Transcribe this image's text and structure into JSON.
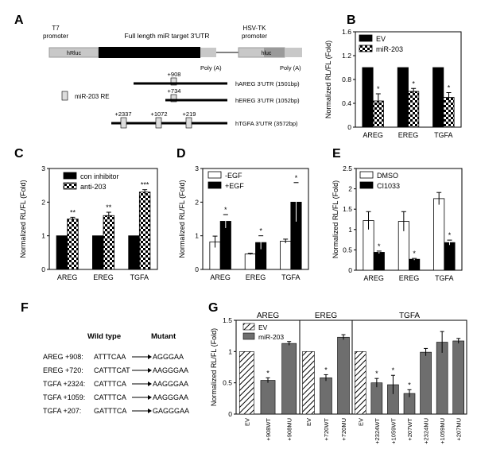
{
  "panel_labels": {
    "a": "A",
    "b": "B",
    "c": "C",
    "d": "D",
    "e": "E",
    "f": "F",
    "g": "G"
  },
  "panel_a": {
    "t7_label": "T7\npromoter",
    "hsv_label": "HSV-TK\npromoter",
    "utr_label": "Full length miR target 3'UTR",
    "hrluc": "hRluc",
    "hluc": "hluc",
    "polya1": "Poly (A)",
    "polya2": "Poly (A)",
    "re_legend": "miR-203 RE",
    "constructs": [
      {
        "name": "hAREG 3'UTR (1501bp)",
        "sites": [
          "+908"
        ]
      },
      {
        "name": "hEREG 3'UTR (1052bp)",
        "sites": [
          "+734"
        ]
      },
      {
        "name": "hTGFA 3'UTR (3572bp)",
        "sites": [
          "+2337",
          "+1072",
          "+219"
        ]
      }
    ]
  },
  "panel_f": {
    "header_wild": "Wild  type",
    "header_mut": "Mutant",
    "rows": [
      {
        "site": "AREG +908:",
        "wild": "ATTTCAA",
        "mut": "AGGGAA"
      },
      {
        "site": "EREG +720:",
        "wild": "CATTTCAT",
        "mut": "AAGGGAA"
      },
      {
        "site": "TGFA +2324:",
        "wild": "CATTTCA",
        "mut": "AAGGGAA"
      },
      {
        "site": "TGFA +1059:",
        "wild": "CATTTCA",
        "mut": "AAGGGAA"
      },
      {
        "site": "TGFA +207:",
        "wild": "GATTTCA",
        "mut": "GAGGGAA"
      }
    ]
  },
  "chart_data": [
    {
      "id": "B",
      "type": "bar",
      "ylabel": "Normalized RL/FL (Fold)",
      "ylim": [
        0,
        1.6
      ],
      "yticks": [
        0,
        0.4,
        0.8,
        1.2,
        1.6
      ],
      "categories": [
        "AREG",
        "EREG",
        "TGFA"
      ],
      "series": [
        {
          "name": "EV",
          "values": [
            1,
            1,
            1
          ],
          "err": [
            0,
            0,
            0
          ]
        },
        {
          "name": "miR-203",
          "values": [
            0.44,
            0.6,
            0.5
          ],
          "err": [
            0.12,
            0.05,
            0.08
          ]
        }
      ],
      "annotations": [
        "*",
        "*",
        "*"
      ]
    },
    {
      "id": "C",
      "type": "bar",
      "ylabel": "Normalized RL/FL (Fold)",
      "ylim": [
        0,
        3
      ],
      "yticks": [
        0,
        1,
        2,
        3
      ],
      "categories": [
        "AREG",
        "EREG",
        "TGFA"
      ],
      "series": [
        {
          "name": "con inhibitor",
          "values": [
            1,
            1,
            1
          ],
          "err": [
            0,
            0,
            0
          ]
        },
        {
          "name": "anti-203",
          "values": [
            1.5,
            1.6,
            2.3
          ],
          "err": [
            0.05,
            0.1,
            0.07
          ]
        }
      ],
      "annotations": [
        "**",
        "**",
        "***"
      ]
    },
    {
      "id": "D",
      "type": "bar",
      "ylabel": "Normalized RL/FL (Fold)",
      "ylim": [
        0,
        3
      ],
      "yticks": [
        0,
        1,
        2,
        3
      ],
      "categories": [
        "AREG",
        "EREG",
        "TGFA"
      ],
      "series": [
        {
          "name": "-EGF",
          "values": [
            0.82,
            0.46,
            0.84
          ],
          "err": [
            0.17,
            0.02,
            0.06
          ]
        },
        {
          "name": "+EGF",
          "values": [
            1.43,
            0.8,
            2.0
          ],
          "err": [
            0.2,
            0.2,
            0.58
          ]
        }
      ],
      "annotations": [
        "*",
        "*",
        "*"
      ]
    },
    {
      "id": "E",
      "type": "bar",
      "ylabel": "Normalized RL/FL (Fold)",
      "ylim": [
        0,
        2.5
      ],
      "yticks": [
        0,
        0.5,
        1,
        1.5,
        2,
        2.5
      ],
      "categories": [
        "AREG",
        "EREG",
        "TGFA"
      ],
      "series": [
        {
          "name": "DMSO",
          "values": [
            1.22,
            1.2,
            1.76
          ],
          "err": [
            0.22,
            0.24,
            0.15
          ]
        },
        {
          "name": "CI1033",
          "values": [
            0.44,
            0.27,
            0.68
          ],
          "err": [
            0.03,
            0.02,
            0.06
          ]
        }
      ],
      "annotations": [
        "*",
        "*",
        "*"
      ]
    },
    {
      "id": "G",
      "type": "bar",
      "ylabel": "Normalized RL/FL (Fold)",
      "ylim": [
        0,
        1.5
      ],
      "yticks": [
        0,
        0.5,
        1,
        1.5
      ],
      "legend": [
        "EV",
        "miR-203"
      ],
      "groups": [
        {
          "title": "AREG",
          "categories": [
            "EV",
            "+908WT",
            "+908MU"
          ],
          "values": [
            1,
            0.54,
            1.13
          ],
          "err": [
            0,
            0.04,
            0.03
          ],
          "stars": [
            "",
            "*",
            ""
          ]
        },
        {
          "title": "EREG",
          "categories": [
            "EV",
            "+720WT",
            "+720MU"
          ],
          "values": [
            1,
            0.58,
            1.23
          ],
          "err": [
            0,
            0.05,
            0.04
          ],
          "stars": [
            "",
            "*",
            ""
          ]
        },
        {
          "title": "TGFA",
          "categories": [
            "EV",
            "+2324WT",
            "+1059WT",
            "+207WT",
            "+2324MU",
            "+1059MU",
            "+207MU"
          ],
          "values": [
            1,
            0.5,
            0.47,
            0.33,
            0.99,
            1.15,
            1.17
          ],
          "err": [
            0,
            0.07,
            0.15,
            0.06,
            0.06,
            0.17,
            0.04
          ],
          "stars": [
            "",
            "*",
            "*",
            "*",
            "",
            "",
            ""
          ]
        }
      ]
    }
  ]
}
